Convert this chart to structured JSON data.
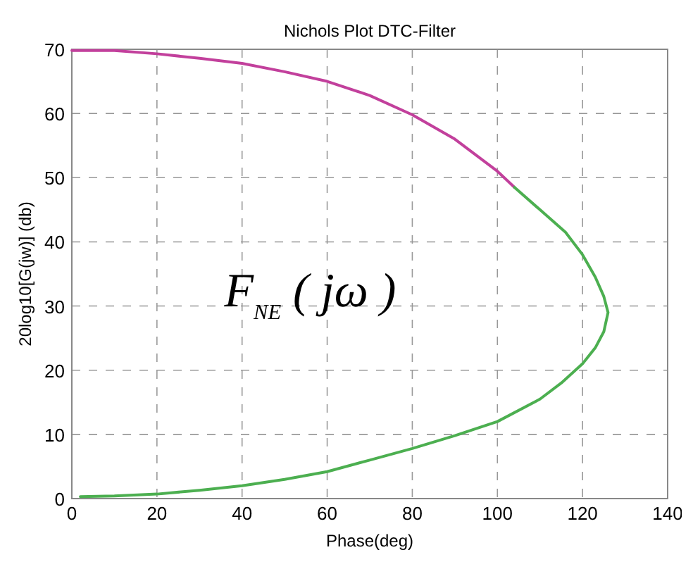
{
  "chart_data": {
    "type": "line",
    "title": "Nichols Plot DTC-Filter",
    "xlabel": "Phase(deg)",
    "ylabel": "20log10[G(jw)]  (db)",
    "xlim": [
      0,
      140
    ],
    "xticks": [
      0,
      20,
      40,
      60,
      80,
      100,
      120,
      140
    ],
    "ylim": [
      0,
      70
    ],
    "yticks": [
      0,
      10,
      20,
      30,
      40,
      50,
      60,
      70
    ],
    "grid": true,
    "line_style": "solid",
    "marker": "none",
    "annotations": [
      "F$_{NE}$ ( jω )"
    ],
    "series": [
      {
        "color": "#c2409c",
        "x": [
          0,
          10,
          20,
          30,
          40,
          50,
          60,
          70,
          80,
          90,
          100,
          104
        ],
        "values": [
          69.8,
          69.8,
          69.3,
          68.6,
          67.8,
          66.5,
          65,
          62.8,
          59.8,
          56,
          51,
          48.5
        ]
      },
      {
        "color": "#4caf50",
        "x": [
          104,
          110,
          116,
          120,
          123,
          125,
          126,
          125,
          123,
          120,
          115,
          110,
          100,
          90,
          80,
          70,
          60,
          50,
          40,
          30,
          20,
          10,
          2
        ],
        "values": [
          48.5,
          45,
          41.5,
          38,
          34.5,
          31.5,
          29,
          26,
          23.5,
          21,
          18,
          15.5,
          12,
          9.8,
          7.8,
          6,
          4.2,
          3,
          2,
          1.3,
          0.7,
          0.4,
          0.3
        ]
      }
    ]
  }
}
